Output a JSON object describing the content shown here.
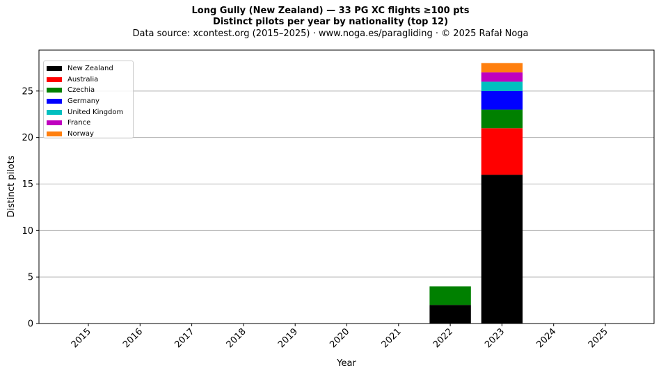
{
  "title": {
    "line1": "Long Gully (New Zealand)  —  33 PG XC flights ≥100 pts",
    "line2": "Distinct pilots per year by nationality (top 12)",
    "line3": "Data source: xcontest.org (2015–2025)  ·  www.noga.es/paragliding  ·  © 2025 Rafał Noga"
  },
  "chart_data": {
    "type": "bar",
    "stacked": true,
    "categories": [
      "2015",
      "2016",
      "2017",
      "2018",
      "2019",
      "2020",
      "2021",
      "2022",
      "2023",
      "2024",
      "2025"
    ],
    "series": [
      {
        "name": "New Zealand",
        "color": "#000000",
        "values": [
          0,
          0,
          0,
          0,
          0,
          0,
          0,
          2,
          16,
          0,
          0
        ]
      },
      {
        "name": "Australia",
        "color": "#ff0000",
        "values": [
          0,
          0,
          0,
          0,
          0,
          0,
          0,
          0,
          5,
          0,
          0
        ]
      },
      {
        "name": "Czechia",
        "color": "#008000",
        "values": [
          0,
          0,
          0,
          0,
          0,
          0,
          0,
          2,
          2,
          0,
          0
        ]
      },
      {
        "name": "Germany",
        "color": "#0000ff",
        "values": [
          0,
          0,
          0,
          0,
          0,
          0,
          0,
          0,
          2,
          0,
          0
        ]
      },
      {
        "name": "United Kingdom",
        "color": "#00bfbf",
        "values": [
          0,
          0,
          0,
          0,
          0,
          0,
          0,
          0,
          1,
          0,
          0
        ]
      },
      {
        "name": "France",
        "color": "#bf00bf",
        "values": [
          0,
          0,
          0,
          0,
          0,
          0,
          0,
          0,
          1,
          0,
          0
        ]
      },
      {
        "name": "Norway",
        "color": "#ff7f0e",
        "values": [
          0,
          0,
          0,
          0,
          0,
          0,
          0,
          0,
          1,
          0,
          0
        ]
      }
    ],
    "xlabel": "Year",
    "ylabel": "Distinct pilots",
    "ylim": [
      0,
      29.4
    ],
    "yticks": [
      0,
      5,
      10,
      15,
      20,
      25
    ],
    "grid": "y",
    "legend_position": "top-left"
  }
}
